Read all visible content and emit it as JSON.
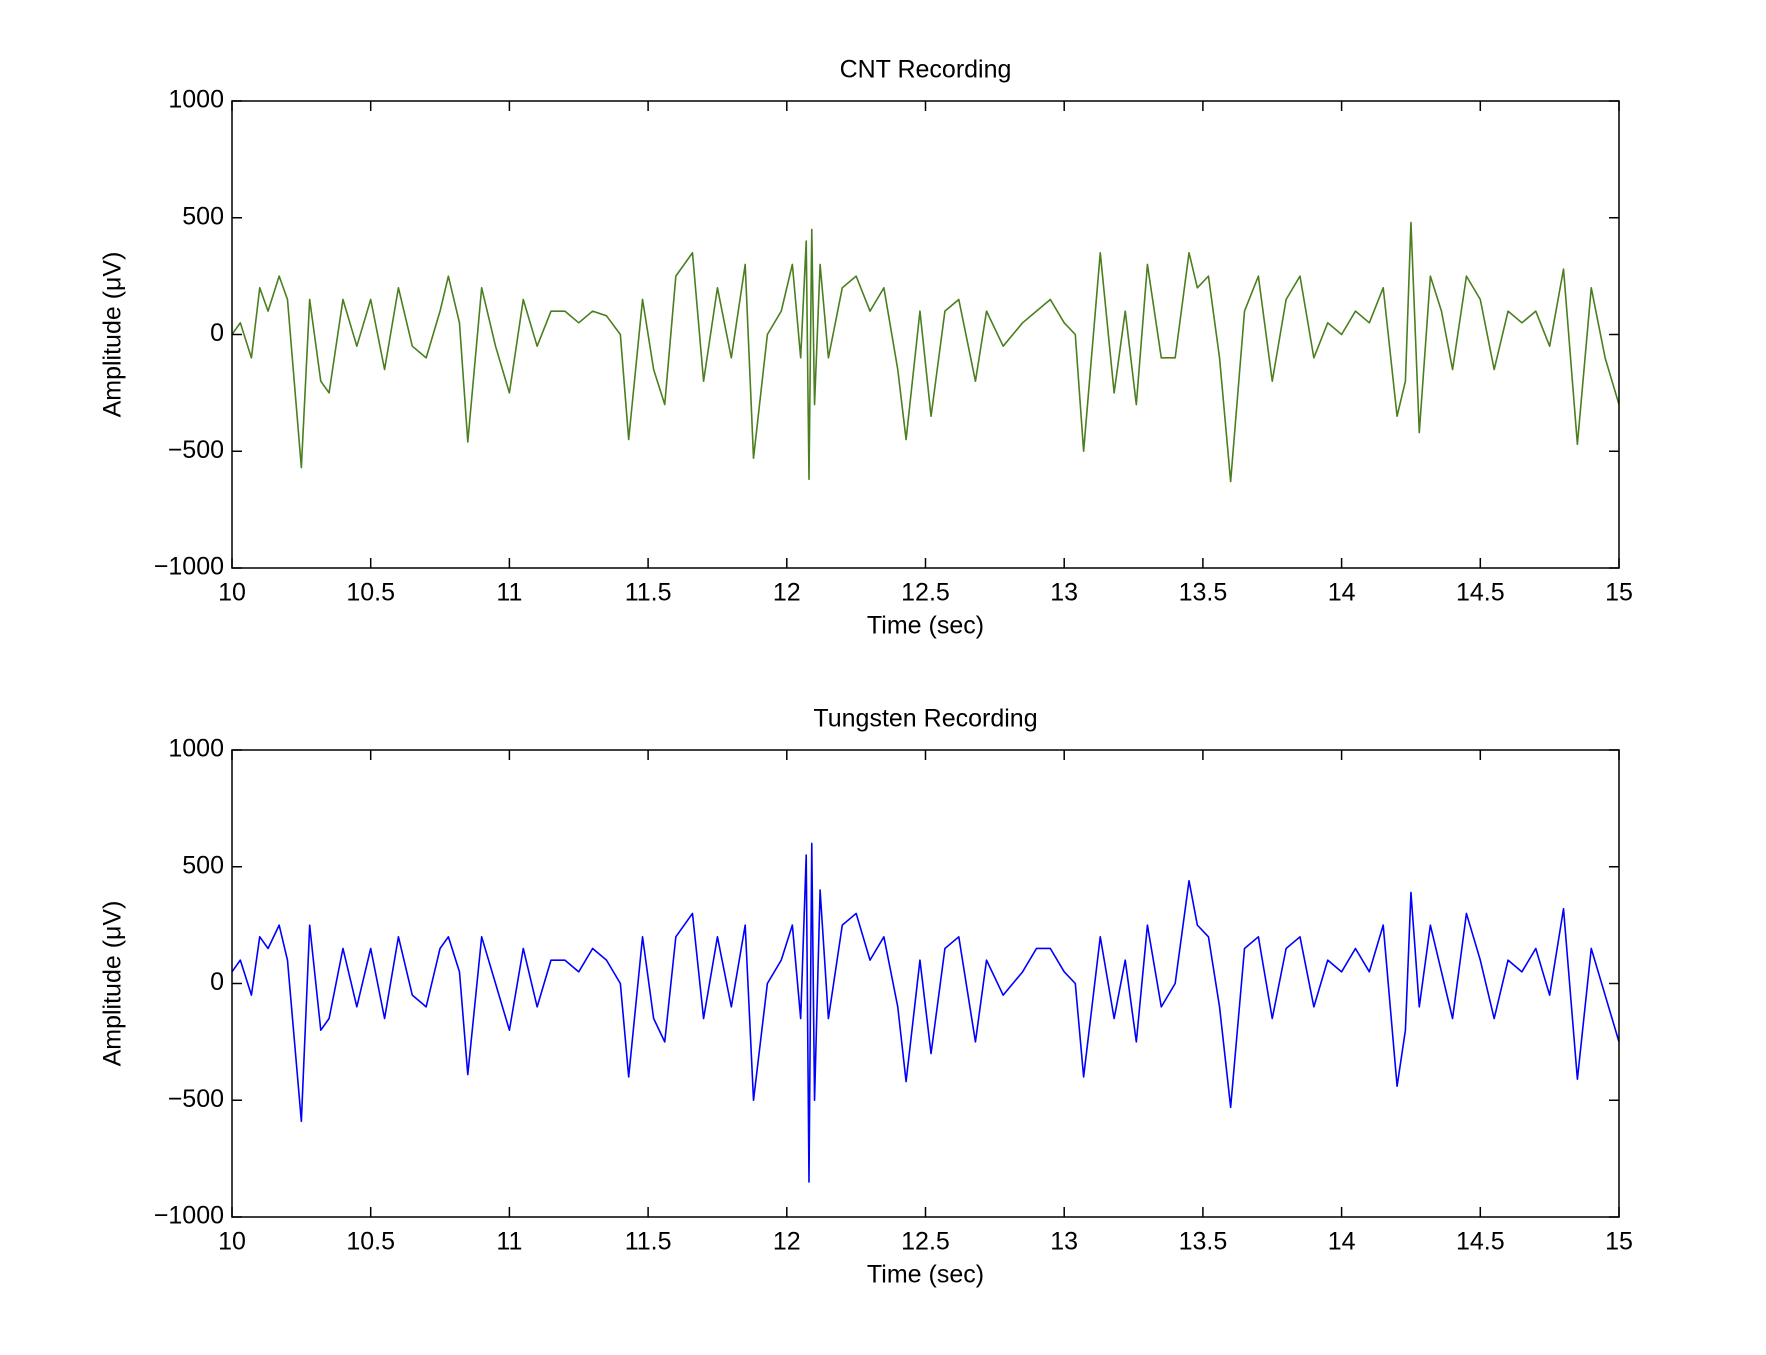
{
  "chart_data": [
    {
      "type": "line",
      "title": "CNT Recording",
      "xlabel": "Time (sec)",
      "ylabel": "Amplitude (μV)",
      "xlim": [
        10,
        15
      ],
      "ylim": [
        -1000,
        1000
      ],
      "xticks": [
        10,
        10.5,
        11,
        11.5,
        12,
        12.5,
        13,
        13.5,
        14,
        14.5,
        15
      ],
      "yticks": [
        {
          "value": -1000,
          "label": "−1000"
        },
        {
          "value": -500,
          "label": "−500"
        },
        0,
        500,
        1000
      ],
      "x": [
        10.0,
        10.03,
        10.07,
        10.1,
        10.13,
        10.17,
        10.2,
        10.25,
        10.28,
        10.32,
        10.35,
        10.4,
        10.45,
        10.5,
        10.55,
        10.6,
        10.65,
        10.7,
        10.75,
        10.78,
        10.82,
        10.85,
        10.9,
        10.95,
        11.0,
        11.05,
        11.1,
        11.15,
        11.2,
        11.25,
        11.3,
        11.35,
        11.4,
        11.43,
        11.48,
        11.52,
        11.56,
        11.6,
        11.66,
        11.7,
        11.75,
        11.8,
        11.85,
        11.88,
        11.93,
        11.98,
        12.02,
        12.05,
        12.07,
        12.08,
        12.09,
        12.1,
        12.12,
        12.15,
        12.2,
        12.25,
        12.3,
        12.35,
        12.4,
        12.43,
        12.48,
        12.52,
        12.57,
        12.62,
        12.68,
        12.72,
        12.78,
        12.85,
        12.9,
        12.95,
        13.0,
        13.04,
        13.07,
        13.13,
        13.18,
        13.22,
        13.26,
        13.3,
        13.35,
        13.4,
        13.45,
        13.48,
        13.52,
        13.56,
        13.6,
        13.65,
        13.7,
        13.75,
        13.8,
        13.85,
        13.9,
        13.95,
        14.0,
        14.05,
        14.1,
        14.15,
        14.2,
        14.23,
        14.25,
        14.28,
        14.32,
        14.36,
        14.4,
        14.45,
        14.5,
        14.55,
        14.6,
        14.65,
        14.7,
        14.75,
        14.8,
        14.85,
        14.9,
        14.95,
        15.0
      ],
      "series": [
        {
          "color": "#4a7f1f",
          "values": [
            0,
            50,
            -100,
            200,
            100,
            250,
            150,
            -570,
            150,
            -200,
            -250,
            150,
            -50,
            150,
            -150,
            200,
            -50,
            -100,
            100,
            250,
            50,
            -460,
            200,
            -50,
            -250,
            150,
            -50,
            100,
            100,
            50,
            100,
            80,
            0,
            -450,
            150,
            -150,
            -300,
            250,
            350,
            -200,
            200,
            -100,
            300,
            -530,
            0,
            100,
            300,
            -100,
            400,
            -620,
            450,
            -300,
            300,
            -100,
            200,
            250,
            100,
            200,
            -150,
            -450,
            100,
            -350,
            100,
            150,
            -200,
            100,
            -50,
            50,
            100,
            150,
            50,
            0,
            -500,
            350,
            -250,
            100,
            -300,
            300,
            -100,
            -100,
            350,
            200,
            250,
            -100,
            -630,
            100,
            250,
            -200,
            150,
            250,
            -100,
            50,
            0,
            100,
            50,
            200,
            -350,
            -200,
            480,
            -420,
            250,
            100,
            -150,
            250,
            150,
            -150,
            100,
            50,
            100,
            -50,
            280,
            -470,
            200,
            -100,
            -300
          ]
        }
      ]
    },
    {
      "type": "line",
      "title": "Tungsten Recording",
      "xlabel": "Time (sec)",
      "ylabel": "Amplitude (μV)",
      "xlim": [
        10,
        15
      ],
      "ylim": [
        -1000,
        1000
      ],
      "xticks": [
        10,
        10.5,
        11,
        11.5,
        12,
        12.5,
        13,
        13.5,
        14,
        14.5,
        15
      ],
      "yticks": [
        {
          "value": -1000,
          "label": "−1000"
        },
        {
          "value": -500,
          "label": "−500"
        },
        0,
        500,
        1000
      ],
      "x": [
        10.0,
        10.03,
        10.07,
        10.1,
        10.13,
        10.17,
        10.2,
        10.25,
        10.28,
        10.32,
        10.35,
        10.4,
        10.45,
        10.5,
        10.55,
        10.6,
        10.65,
        10.7,
        10.75,
        10.78,
        10.82,
        10.85,
        10.9,
        10.95,
        11.0,
        11.05,
        11.1,
        11.15,
        11.2,
        11.25,
        11.3,
        11.35,
        11.4,
        11.43,
        11.48,
        11.52,
        11.56,
        11.6,
        11.66,
        11.7,
        11.75,
        11.8,
        11.85,
        11.88,
        11.93,
        11.98,
        12.02,
        12.05,
        12.07,
        12.08,
        12.09,
        12.1,
        12.12,
        12.15,
        12.2,
        12.25,
        12.3,
        12.35,
        12.4,
        12.43,
        12.48,
        12.52,
        12.57,
        12.62,
        12.68,
        12.72,
        12.78,
        12.85,
        12.9,
        12.95,
        13.0,
        13.04,
        13.07,
        13.13,
        13.18,
        13.22,
        13.26,
        13.3,
        13.35,
        13.4,
        13.45,
        13.48,
        13.52,
        13.56,
        13.6,
        13.65,
        13.7,
        13.75,
        13.8,
        13.85,
        13.9,
        13.95,
        14.0,
        14.05,
        14.1,
        14.15,
        14.2,
        14.23,
        14.25,
        14.28,
        14.32,
        14.36,
        14.4,
        14.45,
        14.5,
        14.55,
        14.6,
        14.65,
        14.7,
        14.75,
        14.8,
        14.85,
        14.9,
        14.95,
        15.0
      ],
      "series": [
        {
          "color": "#0000ff",
          "values": [
            50,
            100,
            -50,
            200,
            150,
            250,
            100,
            -590,
            250,
            -200,
            -150,
            150,
            -100,
            150,
            -150,
            200,
            -50,
            -100,
            150,
            200,
            50,
            -390,
            200,
            0,
            -200,
            150,
            -100,
            100,
            100,
            50,
            150,
            100,
            0,
            -400,
            200,
            -150,
            -250,
            200,
            300,
            -150,
            200,
            -100,
            250,
            -500,
            0,
            100,
            250,
            -150,
            550,
            -850,
            600,
            -500,
            400,
            -150,
            250,
            300,
            100,
            200,
            -100,
            -420,
            100,
            -300,
            150,
            200,
            -250,
            100,
            -50,
            50,
            150,
            150,
            50,
            0,
            -400,
            200,
            -150,
            100,
            -250,
            250,
            -100,
            0,
            440,
            250,
            200,
            -100,
            -530,
            150,
            200,
            -150,
            150,
            200,
            -100,
            100,
            50,
            150,
            50,
            250,
            -440,
            -200,
            390,
            -100,
            250,
            50,
            -150,
            300,
            100,
            -150,
            100,
            50,
            150,
            -50,
            320,
            -410,
            150,
            -50,
            -250
          ]
        }
      ]
    }
  ]
}
